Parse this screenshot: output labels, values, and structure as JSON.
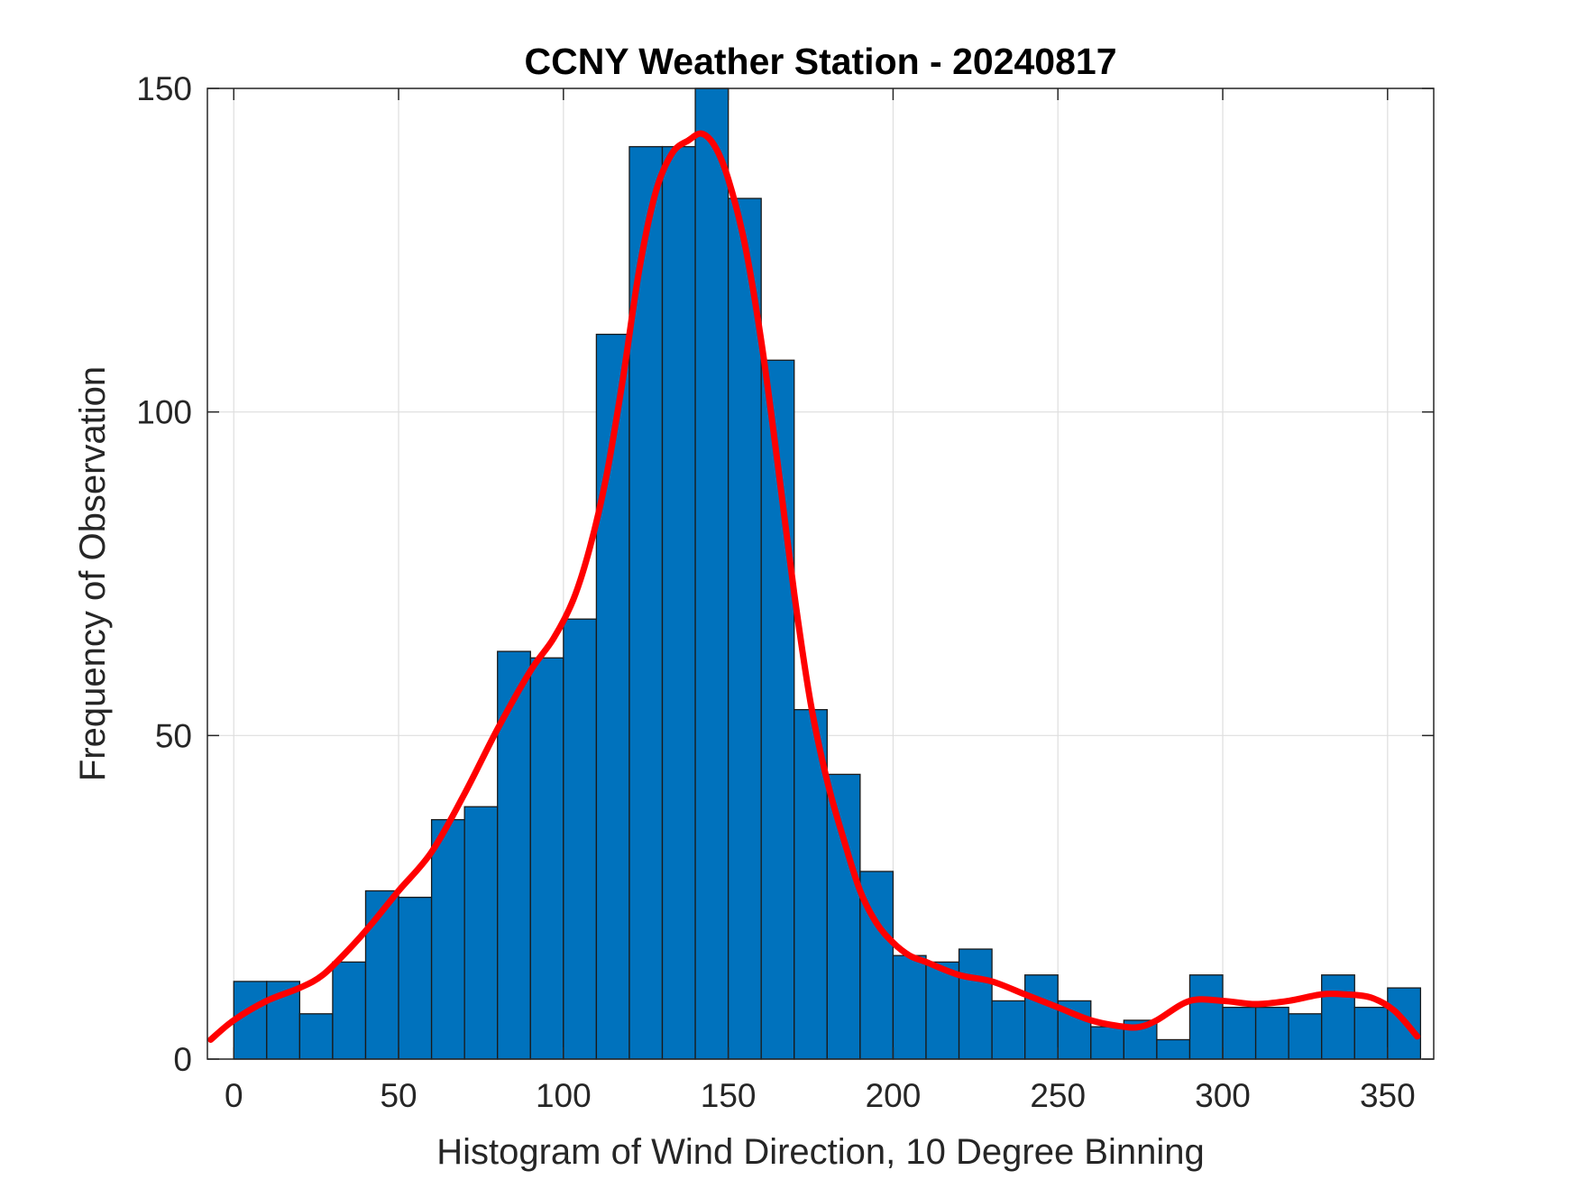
{
  "chart_data": {
    "type": "bar",
    "title": "CCNY Weather Station - 20240817",
    "xlabel": "Histogram of Wind Direction, 10 Degree Binning",
    "ylabel": "Frequency of Observation",
    "xlim": [
      -8,
      364
    ],
    "ylim": [
      0,
      150
    ],
    "xticks": [
      0,
      50,
      100,
      150,
      200,
      250,
      300,
      350
    ],
    "yticks": [
      0,
      50,
      100,
      150
    ],
    "grid": true,
    "bin_width": 10,
    "bin_edges": [
      0,
      10,
      20,
      30,
      40,
      50,
      60,
      70,
      80,
      90,
      100,
      110,
      120,
      130,
      140,
      150,
      160,
      170,
      180,
      190,
      200,
      210,
      220,
      230,
      240,
      250,
      260,
      270,
      280,
      290,
      300,
      310,
      320,
      330,
      340,
      350,
      360
    ],
    "values": [
      12,
      12,
      7,
      15,
      26,
      25,
      37,
      39,
      63,
      62,
      68,
      112,
      141,
      141,
      150,
      133,
      108,
      54,
      44,
      29,
      16,
      15,
      17,
      9,
      13,
      9,
      5,
      6,
      3,
      13,
      8,
      8,
      7,
      13,
      8,
      11
    ],
    "bar_color": "#0072BD",
    "bar_edge_color": "#1a1a1a",
    "fit_curve": {
      "color": "#FF0000",
      "x": [
        -7,
        0,
        10,
        20,
        27,
        35,
        42,
        50,
        60,
        70,
        80,
        90,
        97,
        103,
        108,
        113,
        118,
        123,
        128,
        133,
        138,
        142,
        146,
        150,
        155,
        160,
        165,
        170,
        175,
        180,
        185,
        190,
        195,
        200,
        205,
        210,
        220,
        230,
        240,
        250,
        260,
        270,
        275,
        280,
        290,
        300,
        310,
        320,
        330,
        337,
        345,
        352,
        359
      ],
      "y": [
        3,
        6,
        9,
        11,
        13,
        17,
        21,
        26,
        32,
        41,
        51,
        60,
        65,
        71,
        79,
        90,
        105,
        122,
        134,
        140,
        142,
        143,
        141,
        136,
        126,
        111,
        92,
        72,
        55,
        43,
        34,
        26,
        21,
        18,
        16,
        15,
        13,
        12,
        10,
        8,
        6,
        5,
        5,
        6,
        9,
        9,
        8.5,
        9,
        10,
        10,
        9.5,
        7.5,
        3.5
      ]
    }
  }
}
